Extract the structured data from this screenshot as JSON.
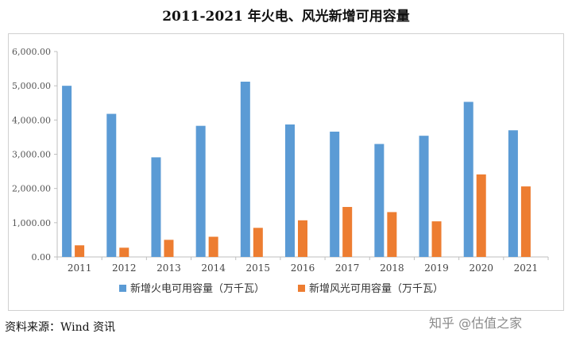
{
  "title": "2011-2021 年火电、风光新增可用容量",
  "source": "资料来源：Wind 资讯",
  "watermark": "知乎 @估值之家",
  "chart_data": {
    "type": "bar",
    "categories": [
      "2011",
      "2012",
      "2013",
      "2014",
      "2015",
      "2016",
      "2017",
      "2018",
      "2019",
      "2020",
      "2021"
    ],
    "series": [
      {
        "name": "新增火电可用容量（万千瓦）",
        "color": "#5b9bd5",
        "values": [
          5000,
          4180,
          2910,
          3830,
          5120,
          3870,
          3660,
          3300,
          3540,
          4530,
          3700
        ]
      },
      {
        "name": "新增风光可用容量（万千瓦）",
        "color": "#ed7d31",
        "values": [
          340,
          270,
          500,
          590,
          850,
          1070,
          1460,
          1310,
          1040,
          2410,
          2060
        ]
      }
    ],
    "yticks": [
      "0.00",
      "1,000.00",
      "2,000.00",
      "3,000.00",
      "4,000.00",
      "5,000.00",
      "6,000.00"
    ],
    "ylim": [
      0,
      6000
    ],
    "grid": false,
    "legend": "bottom"
  }
}
